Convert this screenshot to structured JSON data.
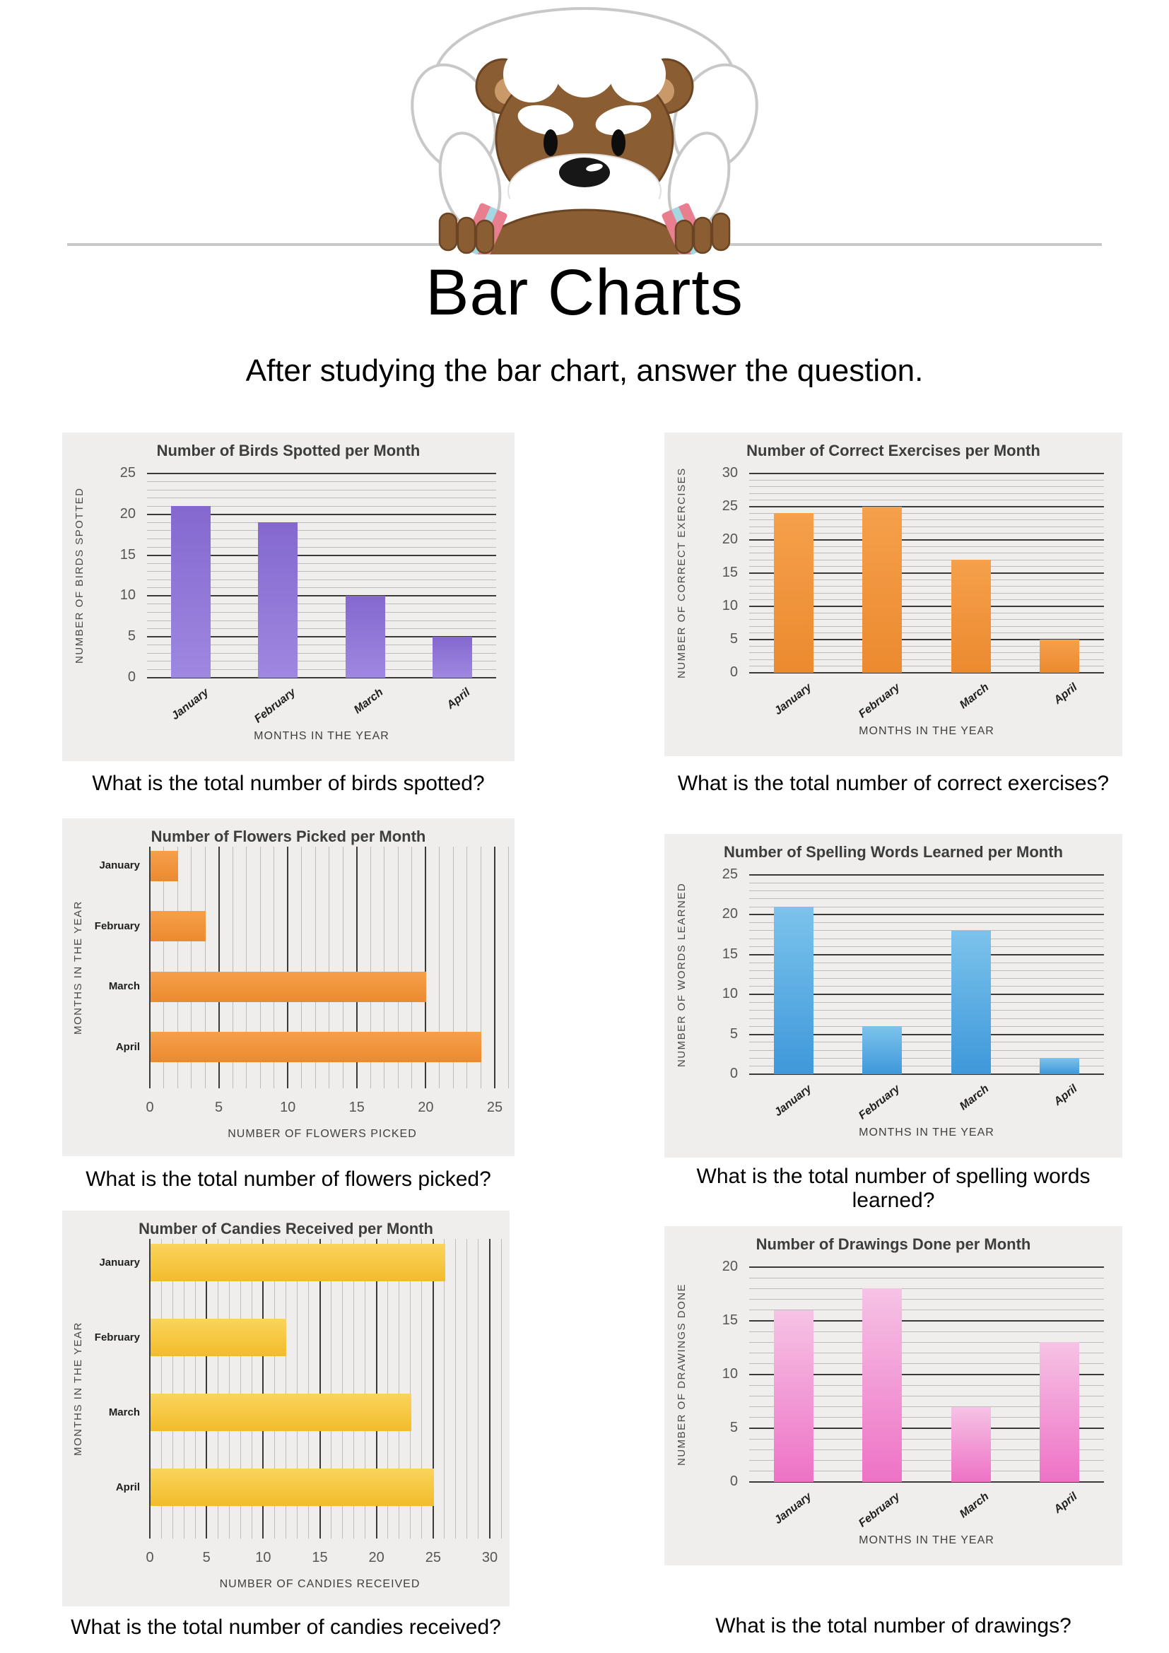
{
  "page": {
    "title": "Bar Charts",
    "subtitle": "After studying the bar chart, answer the question."
  },
  "mascot": {
    "description": "cartoon bear with fluffy white hair peeking over a horizontal line",
    "fur_color": "#8a5d33",
    "fur_outline_color": "#6a4423",
    "inner_ear_color": "#c9996a",
    "hair_color": "#ffffff",
    "strap_color": "#e87e8e",
    "strap_stripe_color": "#a5d7e2",
    "divider_color": "#c9c9c9"
  },
  "chart_data": [
    {
      "id": "birds",
      "type": "bar",
      "orientation": "vertical",
      "title": "Number of Birds Spotted per Month",
      "xlabel": "MONTHS IN THE YEAR",
      "ylabel": "NUMBER OF BIRDS SPOTTED",
      "categories": [
        "January",
        "February",
        "March",
        "April"
      ],
      "values": [
        21,
        19,
        10,
        5
      ],
      "ylim": [
        0,
        25
      ],
      "major_step": 5,
      "minor_step": 1,
      "grid": true,
      "bar_gradient": [
        "#8468cf",
        "#9e88e0"
      ],
      "question": "What is the total number of birds spotted?"
    },
    {
      "id": "exercises",
      "type": "bar",
      "orientation": "vertical",
      "title": "Number of Correct Exercises per Month",
      "xlabel": "MONTHS IN THE YEAR",
      "ylabel": "NUMBER OF CORRECT EXERCISES",
      "categories": [
        "January",
        "February",
        "March",
        "April"
      ],
      "values": [
        24,
        25,
        17,
        5
      ],
      "ylim": [
        0,
        30
      ],
      "major_step": 5,
      "minor_step": 1,
      "grid": true,
      "bar_gradient": [
        "#f5a04b",
        "#ec8a2f"
      ],
      "question": "What is the total number of correct exercises?"
    },
    {
      "id": "flowers",
      "type": "bar",
      "orientation": "horizontal",
      "title": "Number of Flowers Picked per Month",
      "xlabel": "NUMBER OF FLOWERS PICKED",
      "ylabel": "MONTHS IN THE YEAR",
      "categories": [
        "January",
        "February",
        "March",
        "April"
      ],
      "values": [
        2,
        4,
        20,
        24
      ],
      "xlim": [
        0,
        25
      ],
      "major_step": 5,
      "minor_step": 1,
      "grid": true,
      "bar_gradient": [
        "#f5a04b",
        "#ec8a2f"
      ],
      "question": "What is the total number of flowers picked?"
    },
    {
      "id": "spelling",
      "type": "bar",
      "orientation": "vertical",
      "title": "Number of Spelling Words Learned per Month",
      "xlabel": "MONTHS IN THE YEAR",
      "ylabel": "NUMBER OF WORDS LEARNED",
      "categories": [
        "January",
        "February",
        "March",
        "April"
      ],
      "values": [
        21,
        6,
        18,
        2
      ],
      "ylim": [
        0,
        25
      ],
      "major_step": 5,
      "minor_step": 1,
      "grid": true,
      "bar_gradient": [
        "#7cc3ec",
        "#3e98da"
      ],
      "question": "What is the total number of spelling words learned?"
    },
    {
      "id": "candies",
      "type": "bar",
      "orientation": "horizontal",
      "title": "Number of Candies Received per Month",
      "xlabel": "NUMBER OF CANDIES RECEIVED",
      "ylabel": "MONTHS IN THE YEAR",
      "categories": [
        "January",
        "February",
        "March",
        "April"
      ],
      "values": [
        26,
        12,
        23,
        25
      ],
      "xlim": [
        0,
        30
      ],
      "major_step": 5,
      "minor_step": 1,
      "grid": true,
      "bar_gradient": [
        "#fad45c",
        "#f2bc2b"
      ],
      "question": "What is the total number of candies received?"
    },
    {
      "id": "drawings",
      "type": "bar",
      "orientation": "vertical",
      "title": "Number of Drawings Done per Month",
      "xlabel": "MONTHS IN THE YEAR",
      "ylabel": "NUMBER OF DRAWINGS DONE",
      "categories": [
        "January",
        "February",
        "March",
        "April"
      ],
      "values": [
        16,
        18,
        7,
        13
      ],
      "ylim": [
        0,
        20
      ],
      "major_step": 5,
      "minor_step": 1,
      "grid": true,
      "bar_gradient": [
        "#f6c3e5",
        "#ee72c6"
      ],
      "question": "What is the total number of drawings?"
    }
  ]
}
